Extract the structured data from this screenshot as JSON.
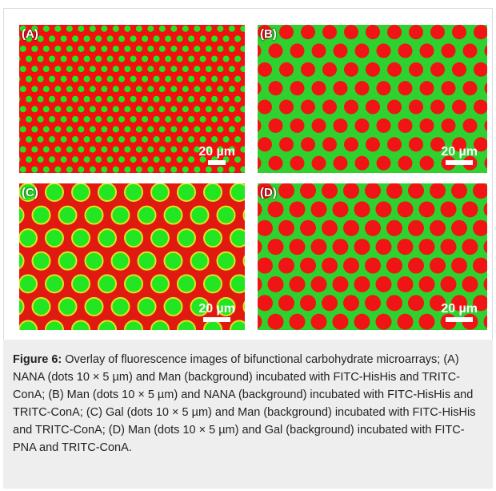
{
  "figure": {
    "panels": [
      {
        "label": "(A)",
        "scale_bar": "20 µm"
      },
      {
        "label": "(B)",
        "scale_bar": "20 µm"
      },
      {
        "label": "(C)",
        "scale_bar": "20 µm"
      },
      {
        "label": "(D)",
        "scale_bar": "20 µm"
      }
    ]
  },
  "caption": {
    "label": "Figure 6:",
    "text": "Overlay of fluorescence images of bifunctional carbohydrate microarrays; (A) NANA (dots 10 × 5 µm) and Man (background) incubated with FITC-HisHis and TRITC-ConA; (B) Man (dots 10 × 5 µm) and NANA (background) incubated with FITC-HisHis and TRITC-ConA; (C) Gal (dots 10 × 5 µm) and Man (background) incubated with FITC-HisHis and TRITC-ConA; (D) Man (dots 10 × 5 µm) and Gal (background) incubated with FITC-PNA and TRITC-ConA."
  }
}
